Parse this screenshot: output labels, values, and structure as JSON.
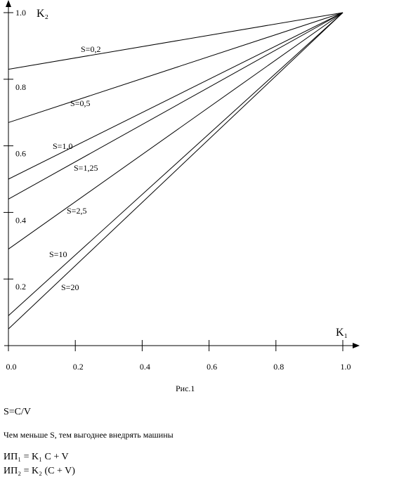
{
  "chart_data": {
    "type": "line",
    "y_label": "K₂",
    "x_label": "K₁",
    "series": [
      {
        "name": "S=0,2",
        "color": "#000000",
        "x": [
          0,
          1
        ],
        "values": [
          0.83,
          1
        ]
      },
      {
        "name": "S=0,5",
        "color": "#000000",
        "x": [
          0,
          1
        ],
        "values": [
          0.67,
          1
        ]
      },
      {
        "name": "S=1,0",
        "color": "#000000",
        "x": [
          0,
          1
        ],
        "values": [
          0.5,
          1
        ]
      },
      {
        "name": "S=1,25",
        "color": "#000000",
        "x": [
          0,
          1
        ],
        "values": [
          0.44,
          1
        ]
      },
      {
        "name": "S=2,5",
        "color": "#000000",
        "x": [
          0,
          1
        ],
        "values": [
          0.29,
          1
        ]
      },
      {
        "name": "S=10",
        "color": "#000000",
        "x": [
          0,
          1
        ],
        "values": [
          0.09,
          1
        ]
      },
      {
        "name": "S=20",
        "color": "#000000",
        "x": [
          0,
          1
        ],
        "values": [
          0.05,
          1
        ]
      }
    ],
    "xlim": [
      0,
      1
    ],
    "ylim": [
      0,
      1
    ],
    "xticks": [
      {
        "value": 0,
        "label": "0.0"
      },
      0.2,
      0.4,
      0.6,
      0.8,
      {
        "value": 1,
        "label": "1.0"
      }
    ],
    "yticks": [
      0.2,
      0.4,
      0.6,
      0.8,
      {
        "value": 1,
        "label": "1.0"
      }
    ]
  },
  "caption": "Рис.1",
  "notes": [
    "S=C/V",
    "Чем меньше S, тем выгоднее внедрять машины",
    "ИП₁ = K₁ C  +  V",
    "ИП₂ = K₂ (C + V)"
  ]
}
